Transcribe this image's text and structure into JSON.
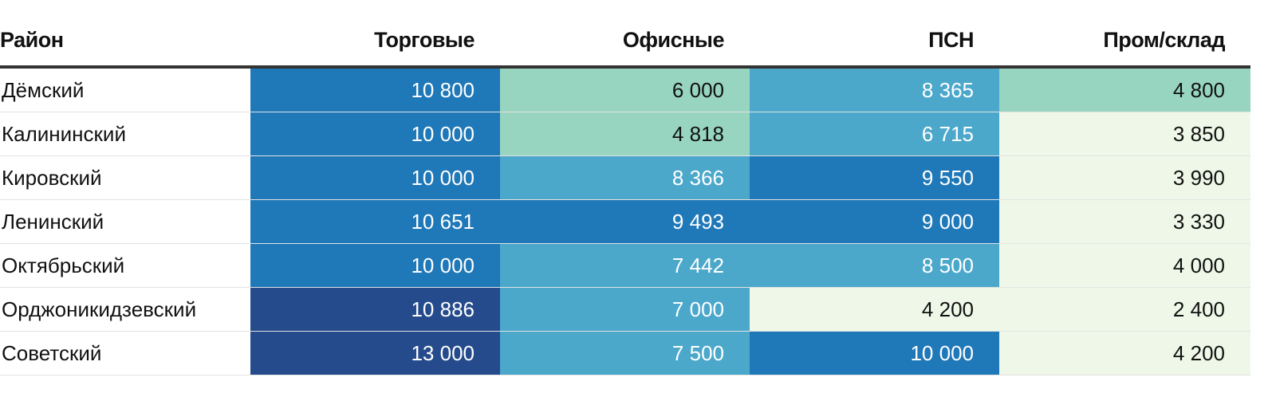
{
  "chart_data": {
    "type": "table",
    "columns": [
      "Район",
      "Торговые",
      "Офисные",
      "ПСН",
      "Пром/склад"
    ],
    "rows": [
      {
        "name": "Дёмский",
        "values": [
          "10 800",
          "6 000",
          "8 365",
          "4 800"
        ]
      },
      {
        "name": "Калининский",
        "values": [
          "10 000",
          "4 818",
          "6 715",
          "3 850"
        ]
      },
      {
        "name": "Кировский",
        "values": [
          "10 000",
          "8 366",
          "9 550",
          "3 990"
        ]
      },
      {
        "name": "Ленинский",
        "values": [
          "10 651",
          "9 493",
          "9 000",
          "3 330"
        ]
      },
      {
        "name": "Октябрьский",
        "values": [
          "10 000",
          "7 442",
          "8 500",
          "4 000"
        ]
      },
      {
        "name": "Орджоникидзевский",
        "values": [
          "10 886",
          "7 000",
          "4 200",
          "2 400"
        ]
      },
      {
        "name": "Советский",
        "values": [
          "13 000",
          "7 500",
          "10 000",
          "4 200"
        ]
      }
    ],
    "cell_colors": [
      [
        "#1f78b8",
        "#98d5c1",
        "#4ba8cb",
        "#98d5c1"
      ],
      [
        "#1f78b8",
        "#98d5c1",
        "#4ba8cb",
        "#eff8e8"
      ],
      [
        "#1f78b8",
        "#4ba8cb",
        "#1f78b8",
        "#eff8e8"
      ],
      [
        "#1f78b8",
        "#1f78b8",
        "#1f78b8",
        "#eff8e8"
      ],
      [
        "#1f78b8",
        "#4ba8cb",
        "#4ba8cb",
        "#eff8e8"
      ],
      [
        "#254b8c",
        "#4ba8cb",
        "#eff8e8",
        "#eff8e8"
      ],
      [
        "#254b8c",
        "#4ba8cb",
        "#1f78b8",
        "#eff8e8"
      ]
    ],
    "text_colors": {
      "dark_bg": "#ffffff",
      "light_bg": "#111111"
    }
  }
}
